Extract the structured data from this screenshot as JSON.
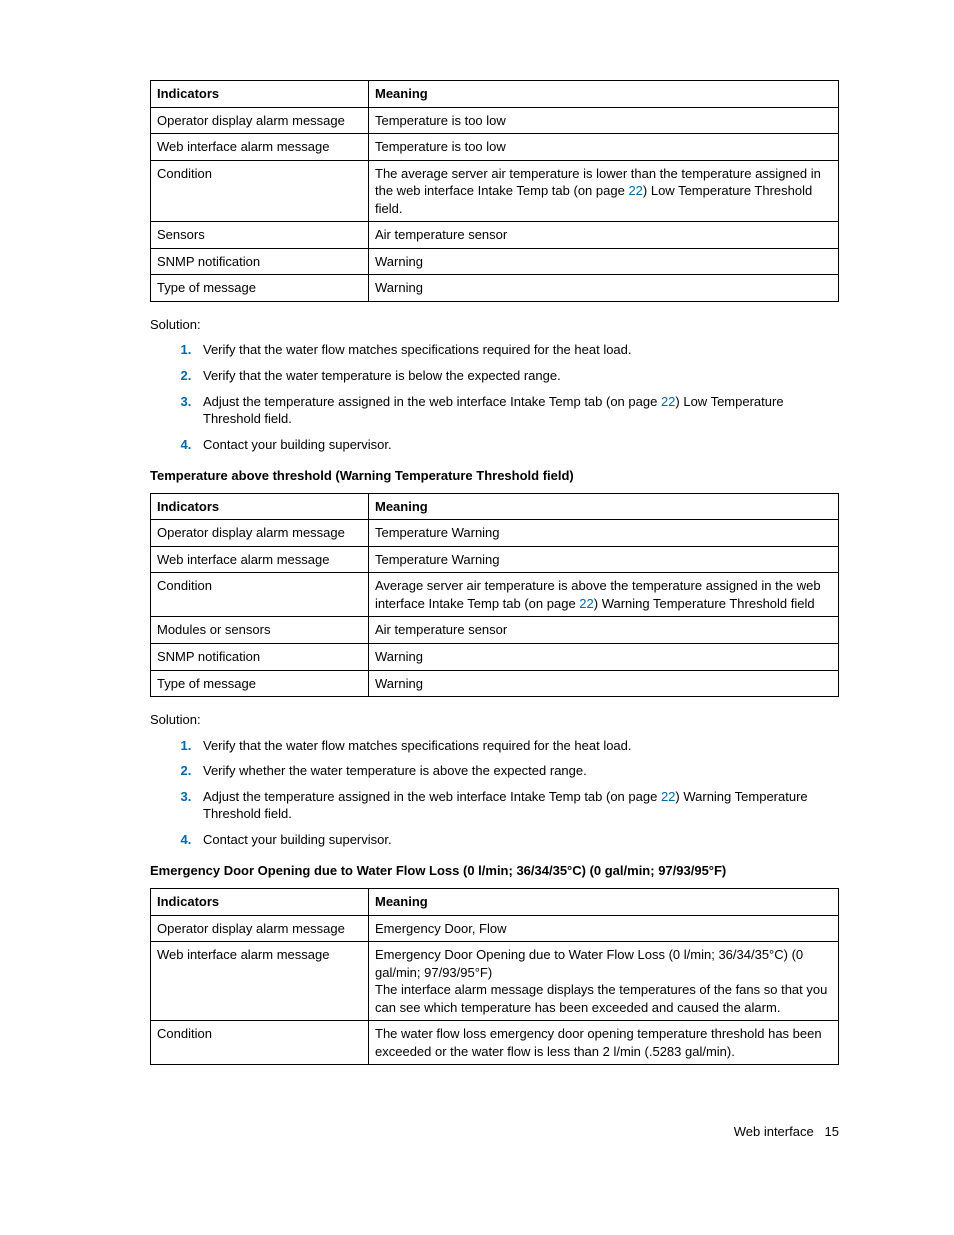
{
  "colors": {
    "link": "#0069aa",
    "text": "#000000",
    "border": "#000000",
    "background": "#ffffff"
  },
  "tableHeaders": {
    "indicators": "Indicators",
    "meaning": "Meaning"
  },
  "table1": {
    "rows": [
      {
        "ind": "Operator display alarm message",
        "mean": "Temperature is too low"
      },
      {
        "ind": "Web interface alarm message",
        "mean": "Temperature is too low"
      },
      {
        "ind": "Condition",
        "mean_pre": "The average server air temperature is lower than the temperature assigned in the web interface Intake Temp tab (on page ",
        "mean_link": "22",
        "mean_post": ") Low Temperature Threshold field."
      },
      {
        "ind": "Sensors",
        "mean": "Air temperature sensor"
      },
      {
        "ind": "SNMP notification",
        "mean": "Warning"
      },
      {
        "ind": "Type of message",
        "mean": "Warning"
      }
    ]
  },
  "solutionLabel": "Solution:",
  "solution1": [
    {
      "text": "Verify that the water flow matches specifications required for the heat load."
    },
    {
      "text": "Verify that the water temperature is below the expected range."
    },
    {
      "pre": "Adjust the temperature assigned in the web interface Intake Temp tab (on page ",
      "link": "22",
      "post": ") Low Temperature Threshold field."
    },
    {
      "text": "Contact your building supervisor."
    }
  ],
  "heading2": "Temperature above threshold (Warning Temperature Threshold field)",
  "table2": {
    "rows": [
      {
        "ind": "Operator display alarm message",
        "mean": "Temperature Warning"
      },
      {
        "ind": "Web interface alarm message",
        "mean": "Temperature Warning"
      },
      {
        "ind": "Condition",
        "mean_pre": "Average server air temperature is above the temperature assigned in the web interface Intake Temp tab (on page ",
        "mean_link": "22",
        "mean_post": ") Warning Temperature Threshold field"
      },
      {
        "ind": "Modules or sensors",
        "mean": "Air temperature sensor"
      },
      {
        "ind": "SNMP notification",
        "mean": "Warning"
      },
      {
        "ind": "Type of message",
        "mean": "Warning"
      }
    ]
  },
  "solution2": [
    {
      "text": "Verify that the water flow matches specifications required for the heat load."
    },
    {
      "text": "Verify whether the water temperature is above the expected range."
    },
    {
      "pre": "Adjust the temperature assigned in the web interface Intake Temp tab (on page ",
      "link": "22",
      "post": ") Warning Temperature Threshold field."
    },
    {
      "text": "Contact your building supervisor."
    }
  ],
  "heading3": "Emergency Door Opening due to Water Flow Loss (0 l/min; 36/34/35°C) (0 gal/min; 97/93/95°F)",
  "table3": {
    "rows": [
      {
        "ind": "Operator display alarm message",
        "mean": "Emergency Door, Flow"
      },
      {
        "ind": "Web interface alarm message",
        "mean": "Emergency Door Opening due to Water Flow Loss (0 l/min; 36/34/35°C) (0 gal/min; 97/93/95°F)\nThe interface alarm message displays the temperatures of the fans so that you can see which temperature has been exceeded and caused the alarm."
      },
      {
        "ind": "Condition",
        "mean": "The water flow loss emergency door opening temperature threshold has been exceeded or the water flow is less than 2 l/min (.5283 gal/min)."
      }
    ]
  },
  "footer": {
    "label": "Web interface",
    "page": "15"
  }
}
